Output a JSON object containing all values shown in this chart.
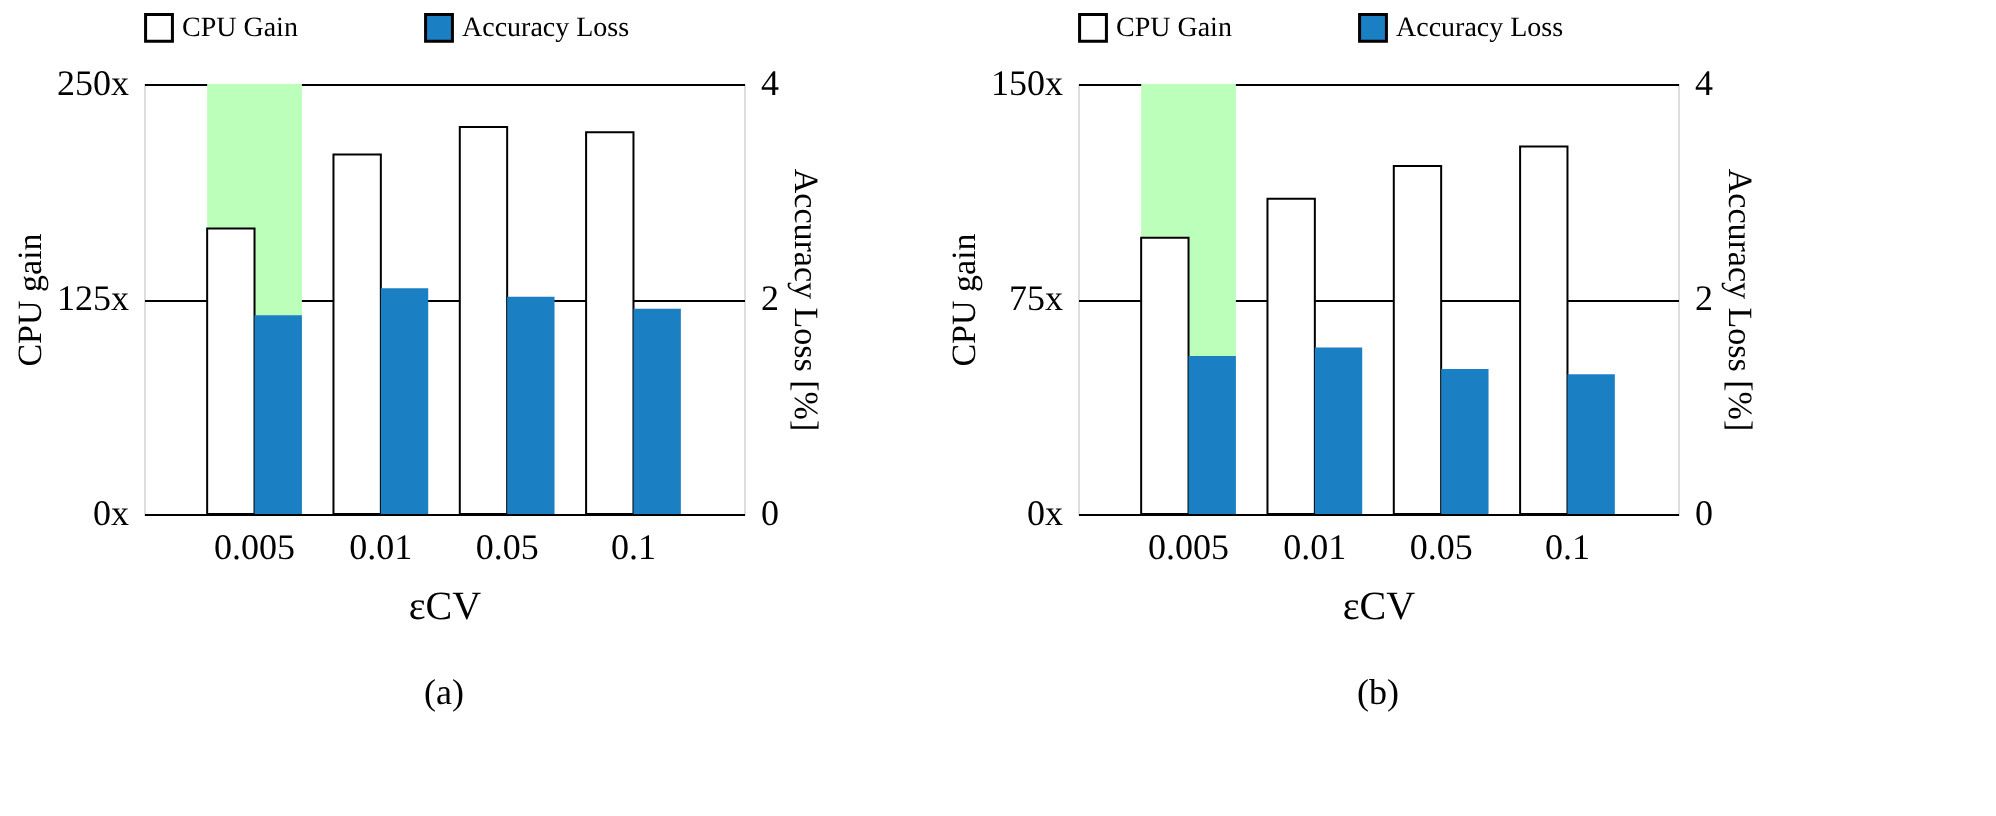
{
  "chart_data": [
    {
      "type": "bar",
      "title": "(a)",
      "xlabel": "εCV",
      "ylabel": "CPU gain",
      "y2label": "Accuracy Loss [%]",
      "categories": [
        "0.005",
        "0.01",
        "0.05",
        "0.1"
      ],
      "series": [
        {
          "name": "CPU Gain",
          "color": "#ffffff",
          "values": [
            166,
            209,
            225,
            222
          ]
        },
        {
          "name": "Accuracy Loss",
          "color": "#1b7fc4",
          "values": [
            1.85,
            2.1,
            2.02,
            1.91
          ],
          "axis": "y2"
        }
      ],
      "ylim": [
        0,
        250
      ],
      "yticks": [
        {
          "value": 0,
          "label": "0x"
        },
        {
          "value": 125,
          "label": "125x"
        },
        {
          "value": 250,
          "label": "250x"
        }
      ],
      "y2lim": [
        0,
        4
      ],
      "y2ticks": [
        0,
        2,
        4
      ],
      "bands": [
        {
          "axis": "x",
          "from": "0.005",
          "to": "0.005",
          "color": "#bbffbb"
        }
      ],
      "grid": "y",
      "legend": "top"
    },
    {
      "type": "bar",
      "title": "(b)",
      "xlabel": "εCV",
      "ylabel": "CPU gain",
      "y2label": "Accuracy Loss [%]",
      "categories": [
        "0.005",
        "0.01",
        "0.05",
        "0.1"
      ],
      "series": [
        {
          "name": "CPU Gain",
          "color": "#ffffff",
          "values": [
            96.4,
            110,
            121.4,
            128.2
          ]
        },
        {
          "name": "Accuracy Loss",
          "color": "#1b7fc4",
          "values": [
            1.47,
            1.55,
            1.35,
            1.3
          ],
          "axis": "y2"
        }
      ],
      "ylim": [
        0,
        150
      ],
      "yticks": [
        {
          "value": 0,
          "label": "0x"
        },
        {
          "value": 75,
          "label": "75x"
        },
        {
          "value": 150,
          "label": "150x"
        }
      ],
      "y2lim": [
        0,
        4
      ],
      "y2ticks": [
        0,
        2,
        4
      ],
      "bands": [
        {
          "axis": "x",
          "from": "0.005",
          "to": "0.005",
          "color": "#bbffbb"
        }
      ],
      "grid": "y",
      "legend": "top"
    }
  ]
}
